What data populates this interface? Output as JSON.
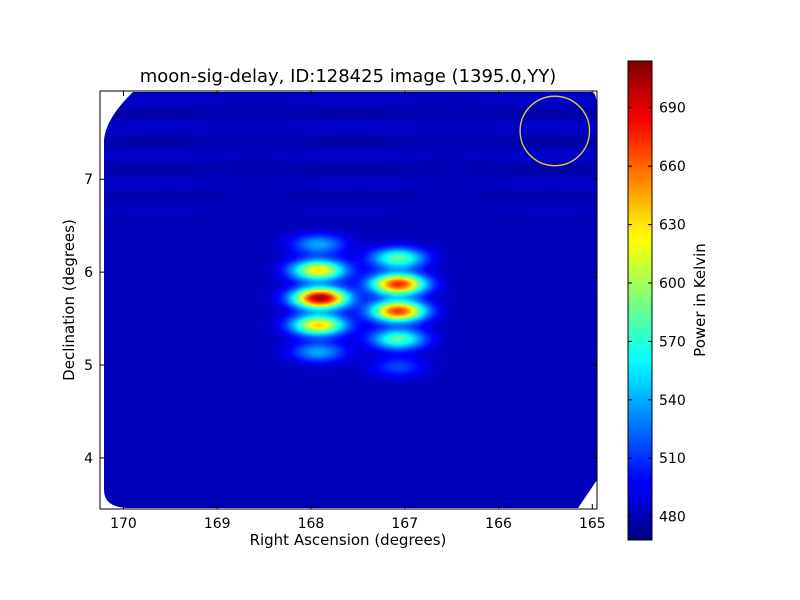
{
  "chart_data": {
    "type": "heatmap",
    "title": "moon-sig-delay, ID:128425 image (1395.0,YY)",
    "xlabel": "Right Ascension (degrees)",
    "ylabel": "Declination (degrees)",
    "xlim": [
      170.25,
      164.95
    ],
    "ylim": [
      3.45,
      7.95
    ],
    "x_ticks": [
      170,
      169,
      168,
      167,
      166,
      165
    ],
    "x_tick_labels": [
      "170",
      "169",
      "168",
      "167",
      "166",
      "165"
    ],
    "y_ticks": [
      4,
      5,
      6,
      7
    ],
    "y_tick_labels": [
      "4",
      "5",
      "6",
      "7"
    ],
    "grid": false,
    "colorbar": {
      "label": "Power in Kelvin",
      "colormap": "jet",
      "range": [
        468,
        714
      ],
      "ticks": [
        480,
        510,
        540,
        570,
        600,
        630,
        660,
        690
      ],
      "tick_labels": [
        "480",
        "510",
        "540",
        "570",
        "600",
        "630",
        "660",
        "690"
      ]
    },
    "background_level": 482,
    "sources": [
      {
        "ra": 167.9,
        "dec": 5.72,
        "peak": 708
      },
      {
        "ra": 167.92,
        "dec": 6.02,
        "peak": 628
      },
      {
        "ra": 167.92,
        "dec": 5.43,
        "peak": 632
      },
      {
        "ra": 167.92,
        "dec": 6.3,
        "peak": 540
      },
      {
        "ra": 167.92,
        "dec": 5.14,
        "peak": 540
      },
      {
        "ra": 167.07,
        "dec": 5.87,
        "peak": 676
      },
      {
        "ra": 167.07,
        "dec": 5.58,
        "peak": 672
      },
      {
        "ra": 167.07,
        "dec": 6.15,
        "peak": 585
      },
      {
        "ra": 167.07,
        "dec": 5.28,
        "peak": 582
      },
      {
        "ra": 167.07,
        "dec": 4.98,
        "peak": 515
      }
    ],
    "beam_circle": {
      "ra": 165.4,
      "dec": 7.52,
      "radius_deg": 0.37,
      "color": "#d8c83a"
    }
  }
}
